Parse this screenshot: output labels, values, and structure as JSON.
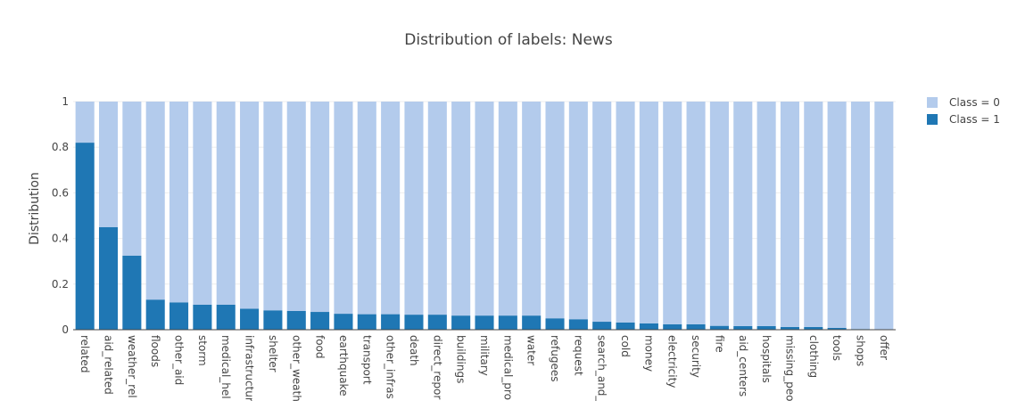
{
  "chart_data": {
    "type": "bar",
    "stacked": true,
    "title": "Distribution of labels: News",
    "xlabel": "",
    "ylabel": "Distribution",
    "ylim": [
      0,
      1
    ],
    "yticks": [
      "0",
      "0.2",
      "0.4",
      "0.6",
      "0.8",
      "1"
    ],
    "ytick_values": [
      0,
      0.2,
      0.4,
      0.6,
      0.8,
      1
    ],
    "grid": true,
    "legend_position": "top-right",
    "categories": [
      "related",
      "aid_related",
      "weather_rel",
      "floods",
      "other_aid",
      "storm",
      "medical_hel",
      "infrastructur",
      "shelter",
      "other_weath",
      "food",
      "earthquake",
      "transport",
      "other_infras",
      "death",
      "direct_repor",
      "buildings",
      "military",
      "medical_pro",
      "water",
      "refugees",
      "request",
      "search_and_",
      "cold",
      "money",
      "electricity",
      "security",
      "fire",
      "aid_centers",
      "hospitals",
      "missing_peo",
      "clothing",
      "tools",
      "shops",
      "offer"
    ],
    "series": [
      {
        "name": "Class = 0",
        "color": "#b3cbec",
        "values": [
          0.18,
          0.55,
          0.675,
          0.868,
          0.88,
          0.89,
          0.89,
          0.908,
          0.915,
          0.918,
          0.922,
          0.93,
          0.932,
          0.932,
          0.934,
          0.934,
          0.938,
          0.938,
          0.938,
          0.938,
          0.95,
          0.954,
          0.965,
          0.968,
          0.972,
          0.976,
          0.976,
          0.983,
          0.984,
          0.984,
          0.988,
          0.988,
          0.992,
          0.997,
          0.998
        ]
      },
      {
        "name": "Class = 1",
        "color": "#1f77b4",
        "values": [
          0.82,
          0.45,
          0.325,
          0.132,
          0.12,
          0.11,
          0.11,
          0.092,
          0.085,
          0.082,
          0.078,
          0.07,
          0.068,
          0.068,
          0.066,
          0.066,
          0.062,
          0.062,
          0.062,
          0.062,
          0.05,
          0.046,
          0.035,
          0.032,
          0.028,
          0.024,
          0.024,
          0.017,
          0.016,
          0.016,
          0.012,
          0.012,
          0.008,
          0.003,
          0.002
        ]
      }
    ]
  }
}
